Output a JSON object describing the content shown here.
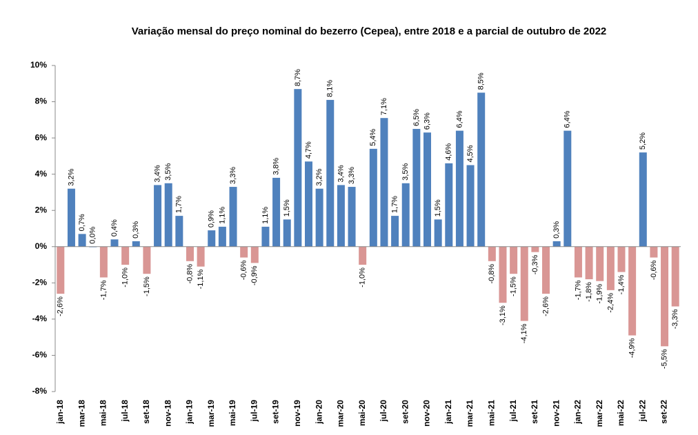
{
  "chart_data": {
    "type": "bar",
    "title": "Variação mensal do  preço nominal do bezerro (Cepea), entre 2018 e a parcial de outubro de 2022",
    "categories": [
      "jan-18",
      null,
      "mar-18",
      null,
      "mai-18",
      null,
      "jul-18",
      null,
      "set-18",
      null,
      "nov-18",
      null,
      "jan-19",
      null,
      "mar-19",
      null,
      "mai-19",
      null,
      "jul-19",
      null,
      "set-19",
      null,
      "nov-19",
      null,
      "jan-20",
      null,
      "mar-20",
      null,
      "mai-20",
      null,
      "jul-20",
      null,
      "set-20",
      null,
      "nov-20",
      null,
      "jan-21",
      null,
      "mar-21",
      null,
      "mai-21",
      null,
      "jul-21",
      null,
      "set-21",
      null,
      "nov-21",
      null,
      "jan-22",
      null,
      "mar-22",
      null,
      "mai-22",
      null,
      "jul-22",
      null,
      "set-22",
      null
    ],
    "values": [
      -2.6,
      3.2,
      0.7,
      0.0,
      -1.7,
      0.4,
      -1.0,
      0.3,
      -1.5,
      3.4,
      3.5,
      1.7,
      -0.8,
      -1.1,
      0.9,
      1.1,
      3.3,
      -0.6,
      -0.9,
      1.1,
      3.8,
      1.5,
      8.7,
      4.7,
      3.2,
      8.1,
      3.4,
      3.3,
      -1.0,
      5.4,
      7.1,
      1.7,
      3.5,
      6.5,
      6.3,
      1.5,
      4.6,
      6.4,
      4.5,
      8.5,
      -0.8,
      -3.1,
      -1.5,
      -4.1,
      -0.3,
      -2.6,
      0.3,
      6.4,
      -1.7,
      -1.8,
      -1.9,
      -2.4,
      -1.4,
      -4.9,
      5.2,
      -0.6,
      -5.5,
      -3.3
    ],
    "value_labels": [
      "-2,6%",
      "3,2%",
      "0,7%",
      "0,0%",
      "-1,7%",
      "0,4%",
      "-1,0%",
      "0,3%",
      "-1,5%",
      "3,4%",
      "3,5%",
      "1,7%",
      "-0,8%",
      "-1,1%",
      "0,9%",
      "1,1%",
      "3,3%",
      "-0,6%",
      "-0,9%",
      "1,1%",
      "3,8%",
      "1,5%",
      "8,7%",
      "4,7%",
      "3,2%",
      "8,1%",
      "3,4%",
      "3,3%",
      "-1,0%",
      "5,4%",
      "7,1%",
      "1,7%",
      "3,5%",
      "6,5%",
      "6,3%",
      "1,5%",
      "4,6%",
      "6,4%",
      "4,5%",
      "8,5%",
      "-0,8%",
      "-3,1%",
      "-1,5%",
      "-4,1%",
      "-0,3%",
      "-2,6%",
      "0,3%",
      "6,4%",
      "-1,7%",
      "-1,8%",
      "-1,9%",
      "-2,4%",
      "-1,4%",
      "-4,9%",
      "5,2%",
      "-0,6%",
      "-5,5%",
      "-3,3%"
    ],
    "color": "#4f81bd",
    "negative_color": "#d99694",
    "ylim": [
      -8,
      10
    ],
    "yticks": [
      {
        "value": -8,
        "label": "-8%"
      },
      {
        "value": -6,
        "label": "-6%"
      },
      {
        "value": -4,
        "label": "-4%"
      },
      {
        "value": -2,
        "label": "-2%"
      },
      {
        "value": 0,
        "label": "0%"
      },
      {
        "value": 2,
        "label": "2%"
      },
      {
        "value": 4,
        "label": "4%"
      },
      {
        "value": 6,
        "label": "6%"
      },
      {
        "value": 8,
        "label": "8%"
      },
      {
        "value": 10,
        "label": "10%"
      }
    ],
    "grid": false
  }
}
